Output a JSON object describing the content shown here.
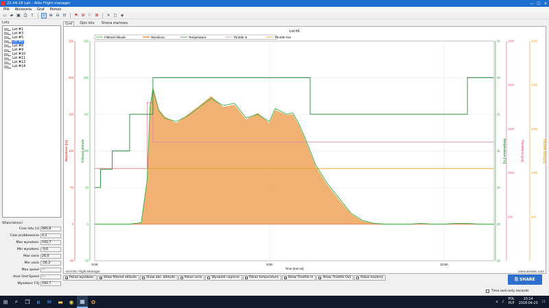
{
  "window": {
    "title": "22-04-18 Lah - Altio Flight manager",
    "min": "—",
    "max": "☐",
    "close": "✕"
  },
  "menu": [
    "Plik",
    "Akcesoria",
    "Graf",
    "Pomoc"
  ],
  "left": {
    "loty_label": "Loty",
    "flights": [
      "Lot #1",
      "Lot #3",
      "Lot #5",
      "Lot #6",
      "Lot #8",
      "Lot #9",
      "Lot #10",
      "Lot #11",
      "Lot #13",
      "Lot #14"
    ],
    "selected_index": 3,
    "props_label": "Wlasciwosci",
    "props": [
      {
        "label": "Czas lotu [s]",
        "value": "685,8"
      },
      {
        "label": "Czas probkowania",
        "value": "0,1"
      },
      {
        "label": "Max wysokosc",
        "value": "192,7"
      },
      {
        "label": "Min wysokosc",
        "value": "-0,6"
      },
      {
        "label": "Max vario",
        "value": "26,0"
      },
      {
        "label": "Min vario",
        "value": "-26,3"
      },
      {
        "label": "Max speed",
        "value": "---"
      },
      {
        "label": "Avar Gnd Speed",
        "value": "---"
      },
      {
        "label": "Wysokosc F3J",
        "value": "192,7"
      }
    ]
  },
  "tabs": [
    {
      "label": "Graf",
      "active": true
    },
    {
      "label": "Opis lotu",
      "active": false
    },
    {
      "label": "Strona startowa",
      "active": false
    }
  ],
  "chart_data": {
    "type": "line",
    "title": "Lot #6",
    "xlabel": "Time [mm:ss]",
    "x_ticks": [
      "0:00",
      "5:00",
      "10:00"
    ],
    "xlim_seconds": [
      0,
      685.8
    ],
    "grid": true,
    "legend_position": "top",
    "footer_left": "AeroTec Flight Manager",
    "footer_right": "www.aerotec.com",
    "axes": {
      "wysokosc": {
        "label": "Wysokosc [m]",
        "ylim": [
          -50,
          250
        ],
        "ticks": [
          250,
          200,
          150,
          100,
          50,
          0,
          -50
        ],
        "color": "#e03c2c"
      },
      "filtered": {
        "label": "Filtered altitude",
        "ylim": [
          -50,
          250
        ],
        "ticks": [
          250,
          200,
          150,
          100,
          50,
          0,
          -50
        ],
        "color": "#2fae3a"
      },
      "temperatura": {
        "label": "Temperature [°C]",
        "ylim": [
          28,
          34
        ],
        "ticks": [
          34,
          33,
          32,
          31,
          30,
          29,
          28
        ],
        "color": "#2a8a3a"
      },
      "throttle_in": {
        "label": "Throttle In [us]",
        "ylim": [
          0,
          2500
        ],
        "ticks": [
          2500,
          2000,
          1500,
          1000,
          500
        ],
        "color": "#d9508a"
      },
      "throttle_out": {
        "label": "Throttle Out [us]",
        "ylim": [
          0,
          2500
        ],
        "ticks": [
          2500,
          2000,
          1500,
          1000,
          500
        ],
        "color": "#e4a020"
      }
    },
    "series": [
      {
        "name": "Filtered Altitude",
        "color": "#2fae3a",
        "x": [
          0,
          30,
          60,
          80,
          90,
          95,
          100,
          110,
          120,
          140,
          160,
          180,
          200,
          220,
          240,
          260,
          280,
          300,
          310,
          330,
          340,
          350,
          360,
          370,
          380,
          400,
          420,
          440,
          460,
          480,
          500,
          520,
          540,
          560,
          580,
          600,
          620,
          640,
          660,
          685
        ],
        "y": [
          0,
          0,
          0,
          2,
          60,
          160,
          185,
          155,
          145,
          140,
          148,
          160,
          172,
          162,
          165,
          145,
          150,
          140,
          158,
          150,
          152,
          138,
          120,
          100,
          80,
          55,
          35,
          15,
          5,
          1,
          0,
          0,
          0,
          1,
          0,
          0,
          1,
          1,
          0,
          0
        ]
      },
      {
        "name": "Wysokosc",
        "color": "#f0a864",
        "x": [
          0,
          30,
          60,
          80,
          90,
          95,
          100,
          110,
          120,
          140,
          160,
          180,
          200,
          220,
          240,
          260,
          280,
          300,
          310,
          330,
          340,
          350,
          360,
          370,
          380,
          400,
          420,
          440,
          460,
          480,
          500,
          520,
          540,
          560,
          580,
          600,
          620,
          640,
          660,
          685
        ],
        "y": [
          0,
          0,
          0,
          2,
          60,
          160,
          188,
          157,
          147,
          138,
          150,
          162,
          175,
          160,
          163,
          143,
          152,
          138,
          156,
          149,
          150,
          136,
          118,
          98,
          78,
          53,
          33,
          14,
          4,
          1,
          0,
          0,
          0,
          1,
          0,
          0,
          1,
          1,
          0,
          0
        ]
      },
      {
        "name": "Temperatura",
        "color": "#2a8a3a",
        "x": [
          0,
          10,
          10,
          30,
          30,
          60,
          60,
          100,
          100,
          370,
          370,
          640,
          640,
          685
        ],
        "y": [
          30.0,
          30.0,
          30.5,
          30.5,
          31.0,
          31.0,
          32.0,
          32.0,
          33.0,
          33.0,
          32.0,
          32.0,
          33.0,
          33.0
        ]
      },
      {
        "name": "Throttle In",
        "color": "#e08aa8",
        "x": [
          0,
          90,
          90,
          100,
          100,
          685
        ],
        "y": [
          1050,
          1050,
          1800,
          1800,
          1350,
          1350
        ]
      },
      {
        "name": "Throttle Out",
        "color": "#e4a020",
        "x": [
          0,
          100,
          100,
          685
        ],
        "y": [
          1050,
          1050,
          1050,
          1050
        ]
      }
    ]
  },
  "checkboxes": [
    {
      "label": "Pokaz wysokosc",
      "checked": true
    },
    {
      "label": "Show filtered altitude",
      "checked": true
    },
    {
      "label": "Show abs. altitude",
      "checked": false
    },
    {
      "label": "Pokaz vario",
      "checked": false
    },
    {
      "label": "Wyswietl napiecie",
      "checked": false
    },
    {
      "label": "Pokaz temperature",
      "checked": true
    },
    {
      "label": "Show Throttle In",
      "checked": true
    },
    {
      "label": "Show Throttle Out",
      "checked": true
    },
    {
      "label": "Pokaz markery",
      "checked": false
    }
  ],
  "share": {
    "label": "SHARE"
  },
  "time_axis_only": {
    "label": "Time axis-only seconds"
  },
  "taskbar": {
    "lang_top": "POL",
    "lang_bottom": "PLP",
    "time": "15:14",
    "date": "2018-04-23"
  }
}
